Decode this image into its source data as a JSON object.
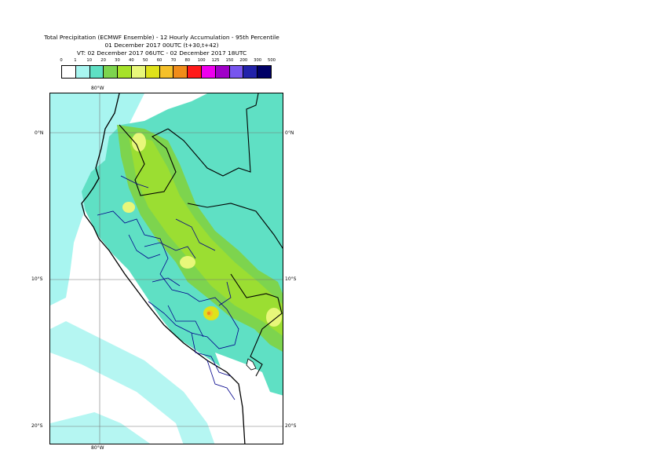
{
  "title": {
    "line1": "Total Precipitation (ECMWF Ensemble) - 12 Hourly Accumulation - 95th Percentile",
    "line2": "01 December 2017 00UTC (t+30,t+42)",
    "line3": "VT: 02 December 2017 06UTC - 02 December 2017 18UTC"
  },
  "legend": {
    "ticks": [
      "0",
      "1",
      "10",
      "20",
      "30",
      "40",
      "50",
      "60",
      "70",
      "80",
      "100",
      "125",
      "150",
      "200",
      "300",
      "500"
    ],
    "colors": [
      "#ffffff",
      "#a8f5f0",
      "#5fe0c4",
      "#7dd44e",
      "#a6e22a",
      "#e8f77a",
      "#dfe21a",
      "#f5c02a",
      "#f08c1a",
      "#ff1a1a",
      "#ee00ee",
      "#a000c8",
      "#7755ee",
      "#2222aa",
      "#000066"
    ]
  },
  "axes": {
    "lon_top": "80°W",
    "lon_bottom": "80°W",
    "lat_left": [
      "0°N",
      "10°S",
      "20°S"
    ],
    "lat_right": [
      "0°N",
      "10°S",
      "20°S"
    ]
  },
  "colors": {
    "ocean_shade": "#a8f5f0",
    "land_base": "#5fe0c4",
    "coast": "#000000",
    "borders": "#00008b"
  }
}
